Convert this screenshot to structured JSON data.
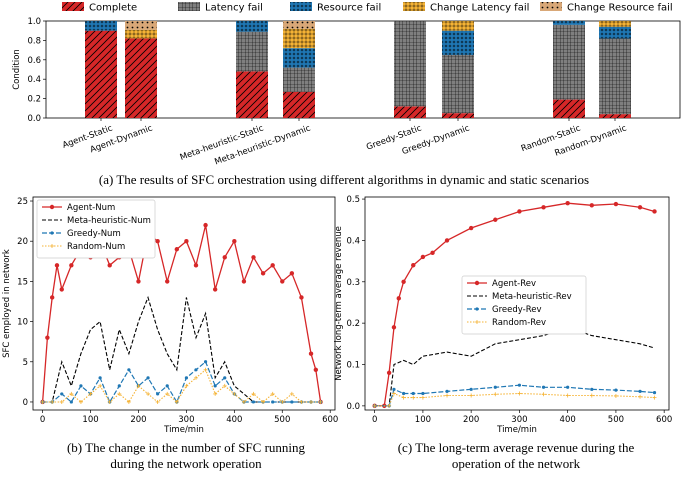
{
  "colors": {
    "complete": "#d62728",
    "latency": "#7f7f7f",
    "resource": "#1f77b4",
    "change_latency": "#f5b335",
    "change_resource": "#d9a878",
    "agent": "#d62728",
    "meta": "#000000",
    "greedy": "#1f77b4",
    "random": "#f5b335"
  },
  "chart_data": [
    {
      "type": "bar",
      "stacked": true,
      "caption": "(a) The results of SFC orchestration using different algorithms in dynamic and static scenarios",
      "ylabel": "Condition",
      "ylim": [
        0,
        1.0
      ],
      "yticks": [
        "0.0",
        "0.2",
        "0.4",
        "0.6",
        "0.8",
        "1.0"
      ],
      "categories": [
        "Agent-Static",
        "Agent-Dynamic",
        "Meta-heuristic-Static",
        "Meta-heuristic-Dynamic",
        "Greedy-Static",
        "Greedy-Dynamic",
        "Random-Static",
        "Random-Dynamic"
      ],
      "legend_position": "top",
      "series": [
        {
          "name": "Complete",
          "key": "complete",
          "values": [
            0.9,
            0.82,
            0.48,
            0.27,
            0.12,
            0.05,
            0.19,
            0.04
          ]
        },
        {
          "name": "Latency fail",
          "key": "latency",
          "values": [
            0.0,
            0.0,
            0.41,
            0.25,
            0.88,
            0.6,
            0.77,
            0.78
          ]
        },
        {
          "name": "Resource fail",
          "key": "resource",
          "values": [
            0.1,
            0.0,
            0.11,
            0.2,
            0.0,
            0.25,
            0.04,
            0.12
          ]
        },
        {
          "name": "Change Latency fail",
          "key": "change_latency",
          "values": [
            0.0,
            0.09,
            0.0,
            0.2,
            0.0,
            0.1,
            0.0,
            0.06
          ]
        },
        {
          "name": "Change Resource fail",
          "key": "change_resource",
          "values": [
            0.0,
            0.09,
            0.0,
            0.08,
            0.0,
            0.0,
            0.0,
            0.0
          ]
        }
      ]
    },
    {
      "type": "line",
      "caption_lines": [
        "(b) The change in the number of SFC running",
        "during the network operation"
      ],
      "xlabel": "Time/min",
      "ylabel": "SFC employed in network",
      "xlim": [
        -20,
        610
      ],
      "ylim": [
        -1,
        25.5
      ],
      "xticks": [
        "0",
        "100",
        "200",
        "300",
        "400",
        "500",
        "600"
      ],
      "yticks": [
        "0",
        "5",
        "10",
        "15",
        "20",
        "25"
      ],
      "legend_position": "upper left",
      "series": [
        {
          "name": "Agent-Num",
          "key": "agent",
          "x": [
            0,
            10,
            20,
            30,
            40,
            60,
            80,
            100,
            120,
            140,
            160,
            180,
            200,
            220,
            240,
            260,
            280,
            300,
            320,
            340,
            360,
            380,
            400,
            420,
            440,
            460,
            480,
            500,
            520,
            540,
            560,
            570,
            580
          ],
          "y": [
            0,
            8,
            13,
            17,
            14,
            17,
            19,
            18,
            20,
            17,
            18,
            19,
            15,
            21,
            20,
            15,
            19,
            20,
            17,
            22,
            14,
            18,
            20,
            15,
            18,
            16,
            17,
            15,
            16,
            13,
            6,
            4,
            0
          ]
        },
        {
          "name": "Meta-heuristic-Num",
          "key": "meta",
          "x": [
            0,
            20,
            40,
            60,
            80,
            100,
            120,
            140,
            160,
            180,
            200,
            220,
            240,
            260,
            280,
            300,
            320,
            340,
            360,
            380,
            400,
            420,
            440,
            460,
            480,
            500,
            520,
            540,
            560,
            580
          ],
          "y": [
            0,
            0,
            5,
            2,
            6,
            9,
            10,
            4,
            9,
            6,
            10,
            13,
            9,
            6,
            4,
            13,
            8,
            11,
            3,
            5,
            2,
            1,
            0,
            0,
            0,
            0,
            0,
            0,
            0,
            0
          ]
        },
        {
          "name": "Greedy-Num",
          "key": "greedy",
          "x": [
            0,
            20,
            40,
            60,
            80,
            100,
            120,
            140,
            160,
            180,
            200,
            220,
            240,
            260,
            280,
            300,
            320,
            340,
            360,
            380,
            400,
            420,
            440,
            460,
            480,
            500,
            520,
            540,
            560,
            580
          ],
          "y": [
            0,
            0,
            1,
            0,
            2,
            1,
            3,
            0,
            2,
            4,
            2,
            3,
            1,
            2,
            0,
            3,
            4,
            5,
            2,
            3,
            1,
            0,
            0,
            0,
            0,
            0,
            0,
            0,
            0,
            0
          ]
        },
        {
          "name": "Random-Num",
          "key": "random",
          "x": [
            0,
            20,
            40,
            60,
            80,
            100,
            120,
            140,
            160,
            180,
            200,
            220,
            240,
            260,
            280,
            300,
            320,
            340,
            360,
            380,
            400,
            420,
            440,
            460,
            480,
            500,
            520,
            540,
            560,
            580
          ],
          "y": [
            0,
            0,
            0,
            1,
            0,
            1,
            2,
            0,
            1,
            0,
            2,
            1,
            0,
            1,
            0,
            2,
            3,
            4,
            1,
            2,
            1,
            0,
            1,
            0,
            1,
            0,
            1,
            0,
            0,
            0
          ]
        }
      ]
    },
    {
      "type": "line",
      "caption_lines": [
        "(c) The long-term average revenue during the",
        "operation of the network"
      ],
      "xlabel": "Time/min",
      "ylabel": "Network long-term average revenue",
      "xlim": [
        -20,
        610
      ],
      "ylim": [
        -0.01,
        0.505
      ],
      "xticks": [
        "0",
        "100",
        "200",
        "300",
        "400",
        "500",
        "600"
      ],
      "yticks": [
        "0.0",
        "0.1",
        "0.2",
        "0.3",
        "0.4",
        "0.5"
      ],
      "legend_position": "center right",
      "series": [
        {
          "name": "Agent-Rev",
          "key": "agent",
          "x": [
            0,
            20,
            30,
            40,
            50,
            60,
            80,
            100,
            120,
            150,
            200,
            250,
            300,
            350,
            400,
            450,
            500,
            550,
            580
          ],
          "y": [
            0,
            0,
            0.08,
            0.19,
            0.26,
            0.3,
            0.34,
            0.36,
            0.37,
            0.4,
            0.43,
            0.45,
            0.47,
            0.48,
            0.49,
            0.485,
            0.488,
            0.48,
            0.47
          ]
        },
        {
          "name": "Meta-heuristic-Rev",
          "key": "meta",
          "x": [
            0,
            30,
            40,
            60,
            80,
            100,
            150,
            200,
            250,
            300,
            350,
            400,
            450,
            500,
            550,
            580
          ],
          "y": [
            0,
            0,
            0.1,
            0.11,
            0.1,
            0.12,
            0.13,
            0.12,
            0.15,
            0.16,
            0.17,
            0.19,
            0.17,
            0.16,
            0.15,
            0.14
          ]
        },
        {
          "name": "Greedy-Rev",
          "key": "greedy",
          "x": [
            0,
            30,
            40,
            60,
            80,
            100,
            150,
            200,
            250,
            300,
            350,
            400,
            450,
            500,
            550,
            580
          ],
          "y": [
            0,
            0,
            0.04,
            0.03,
            0.03,
            0.03,
            0.035,
            0.04,
            0.045,
            0.05,
            0.045,
            0.045,
            0.04,
            0.038,
            0.035,
            0.032
          ]
        },
        {
          "name": "Random-Rev",
          "key": "random",
          "x": [
            0,
            30,
            40,
            60,
            80,
            100,
            150,
            200,
            250,
            300,
            350,
            400,
            450,
            500,
            550,
            580
          ],
          "y": [
            0,
            0,
            0.03,
            0.02,
            0.02,
            0.02,
            0.025,
            0.025,
            0.028,
            0.03,
            0.028,
            0.025,
            0.025,
            0.024,
            0.022,
            0.02
          ]
        }
      ]
    }
  ]
}
